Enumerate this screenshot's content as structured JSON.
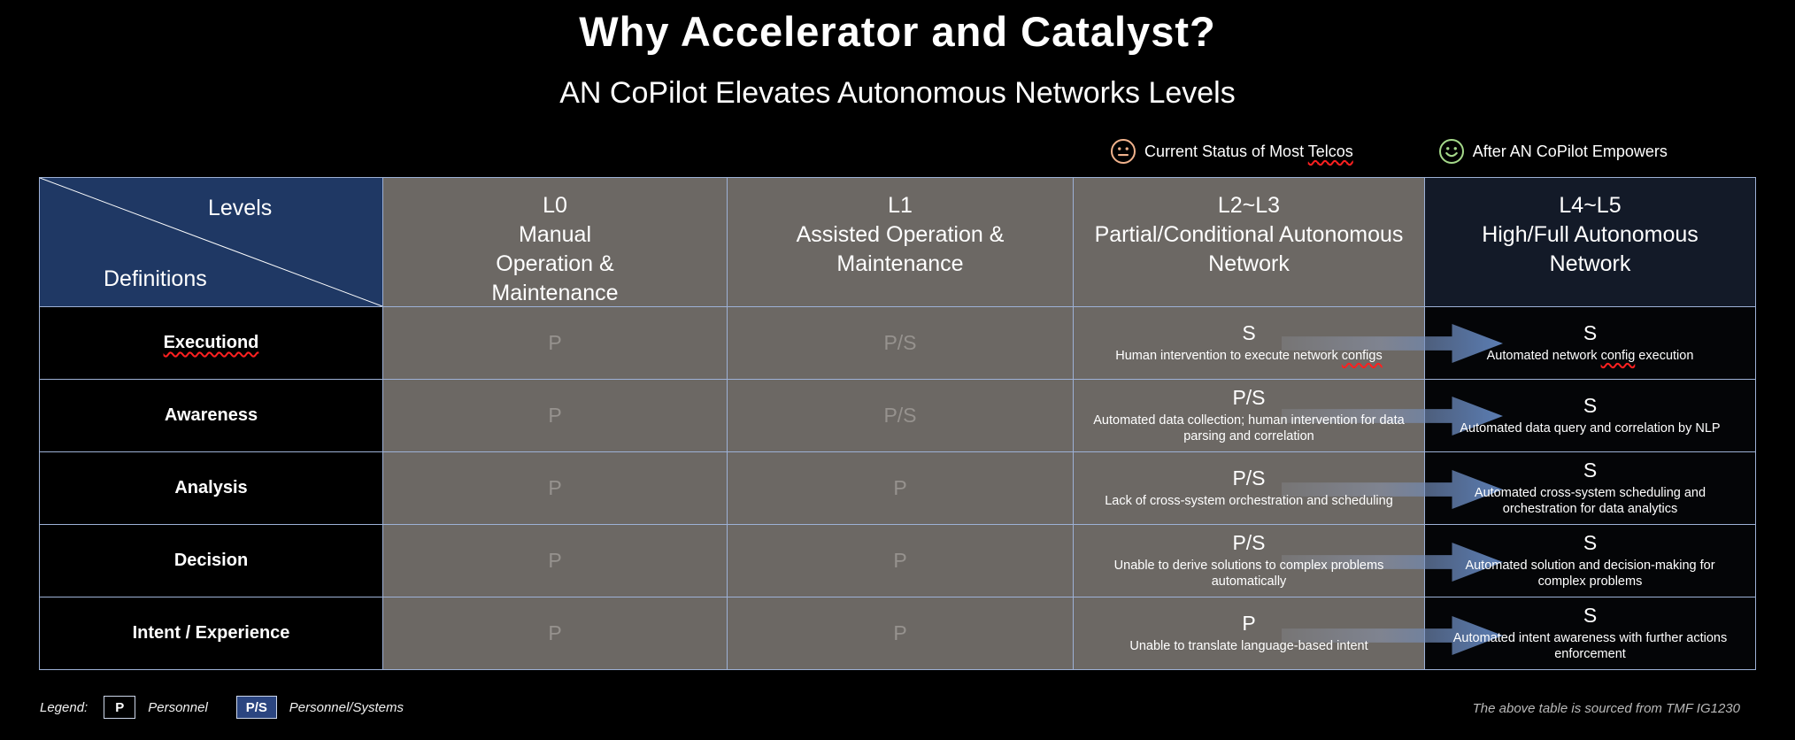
{
  "slide": {
    "title": "Why Accelerator and Catalyst?",
    "subtitle": "AN CoPilot Elevates Autonomous Networks Levels"
  },
  "status_legend": {
    "current": {
      "label": "Current Status of Most Telcos"
    },
    "after": {
      "label": "After AN CoPilot Empowers"
    }
  },
  "table": {
    "corner": {
      "top": "Levels",
      "bottom": "Definitions"
    },
    "headers": {
      "l0": "L0\nManual\nOperation &\nMaintenance",
      "l1": "L1\nAssisted Operation &\nMaintenance",
      "l23": "L2~L3\nPartial/Conditional Autonomous\nNetwork",
      "l45": "L4~L5\nHigh/Full Autonomous\nNetwork"
    },
    "rows": [
      {
        "label": "Executiond",
        "l0": "P",
        "l1": "P/S",
        "l23_value": "S",
        "l23_desc": "Human intervention to execute network configs",
        "l45_value": "S",
        "l45_desc": "Automated network config execution"
      },
      {
        "label": "Awareness",
        "l0": "P",
        "l1": "P/S",
        "l23_value": "P/S",
        "l23_desc": "Automated data collection; human intervention for data parsing and correlation",
        "l45_value": "S",
        "l45_desc": "Automated data query and correlation by NLP"
      },
      {
        "label": "Analysis",
        "l0": "P",
        "l1": "P",
        "l23_value": "P/S",
        "l23_desc": "Lack of cross-system orchestration and scheduling",
        "l45_value": "S",
        "l45_desc": "Automated cross-system scheduling and orchestration for data analytics"
      },
      {
        "label": "Decision",
        "l0": "P",
        "l1": "P",
        "l23_value": "P/S",
        "l23_desc": "Unable to derive solutions to complex problems automatically",
        "l45_value": "S",
        "l45_desc": "Automated solution and decision-making for complex problems"
      },
      {
        "label": "Intent / Experience",
        "l0": "P",
        "l1": "P",
        "l23_value": "P",
        "l23_desc": "Unable to translate language-based intent",
        "l45_value": "S",
        "l45_desc": "Automated intent awareness with further actions enforcement"
      }
    ]
  },
  "footer": {
    "legend_label": "Legend:",
    "items": [
      {
        "box": "P",
        "desc": "Personnel"
      },
      {
        "box": "P/S",
        "desc": "Personnel/Systems"
      }
    ],
    "source": "The above table is sourced from TMF IG1230"
  },
  "colors": {
    "navy": "#1f3864",
    "gray": "#6c6864",
    "dim_text": "#96928e",
    "dark_header": "#131a28",
    "black_cell": "#040507",
    "border": "#9db1d6",
    "arrow_blue": "#5b7db3",
    "smiley_current": "#f0b28c",
    "smiley_after": "#a5d98a",
    "ps_box": "#2b4580"
  },
  "misspelled": [
    "Executiond",
    "Telcos",
    "configs",
    "config"
  ]
}
